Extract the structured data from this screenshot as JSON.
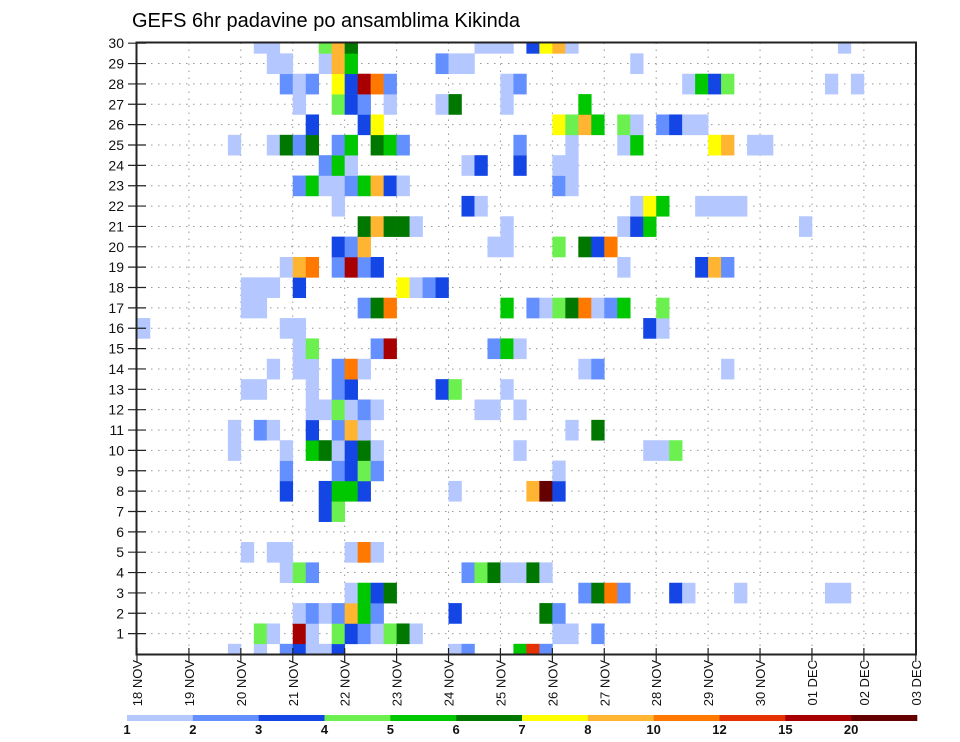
{
  "chart_data": {
    "type": "heatmap",
    "title": "GEFS 6hr padavine po ansamblima Kikinda",
    "xlabel": "",
    "ylabel": "",
    "x_unit": "6-hour step index from 18 NOV 00 UTC",
    "x_steps": 60,
    "x_tick_labels": [
      "18 NOV",
      "19 NOV",
      "20 NOV",
      "21 NOV",
      "22 NOV",
      "23 NOV",
      "24 NOV",
      "25 NOV",
      "26 NOV",
      "27 NOV",
      "28 NOV",
      "29 NOV",
      "30 NOV",
      "01 DEC",
      "02 DEC",
      "03 DEC"
    ],
    "y_ticks": [
      1,
      2,
      3,
      4,
      5,
      6,
      7,
      8,
      9,
      10,
      11,
      12,
      13,
      14,
      15,
      16,
      17,
      18,
      19,
      20,
      21,
      22,
      23,
      24,
      25,
      26,
      27,
      28,
      29,
      30
    ],
    "ylim": [
      0,
      30
    ],
    "grid": true,
    "legend_placement": "bottom",
    "levels": [
      "1",
      "2",
      "3",
      "4",
      "5",
      "6",
      "7",
      "8",
      "10",
      "12",
      "15",
      "20"
    ],
    "colors": [
      "#b4c8ff",
      "#6490ff",
      "#1446e6",
      "#6cf050",
      "#00c800",
      "#007800",
      "#ffff00",
      "#ffb432",
      "#ff7800",
      "#e63200",
      "#a80000",
      "#640000"
    ],
    "bin_codes": "abcdefghijkl",
    "cells_by_member": {
      "30": "9a 10a 14d 15h 16f 26a 27a 28a 30c 31g 32h 33a 54a",
      "29": "10a 11a 14a 15h 16e 23b 24a 25a 38a",
      "28": "11b 12a 13b 15g 16c 17k 18i 19b 28a 29b 42a 43e 44c 45d 53a 55a",
      "27": "12a 15d 16c 17b 19a 23a 24f 28a 34e",
      "26": "13c 17c 18g 32g 33d 34h 35e 37d 38a 40b 41c 42a 43a",
      "25": "7a 10a 11f 12b 13f 15b 16e 18f 19e 20b 29b 33a 37a 38e 44g 45h 47a 48a",
      "24": "14b 15e 16a 25a 26c 29c 32a 33a",
      "23": "12b 13e 14a 15a 16b 17e 18h 19c 20a 32b 33a",
      "22": "15a 25c 26a 38a 39g 40e 43a 44a 45a 46a",
      "21": "17f 18h 19f 20f 21a 28a 37a 38c 39e 51a",
      "20": "15c 16b 17h 27a 28a 32d 34f 35c 36i",
      "19": "11a 12h 13i 15b 16k 17b 18c 37a 43c 44h 45b",
      "18": "8a 9a 10a 12c 20g 21a 22b 23c",
      "17": "8a 9a 17b 18f 19i 28e 30b 31a 32d 33f 34i 35a 36b 37e 40d",
      "16": "0a 11a 12a 39c 40a",
      "15": "12a 13d 18b 19k 27b 28e 29a",
      "14": "10a 12a 13a 15b 16i 17a 34a 35b 45a",
      "13": "8a 9a 13a 15b 16c 23c 24d 28a",
      "12": "13a 14a 15d 16a 17b 18a 26a 27a 29a",
      "11": "7a 9b 10a 13c 15b 16h 17a 33a 35f",
      "10": "7a 11a 13e 14f 15a 16c 17f 18a 29a 39a 40a 41d",
      "9": "11b 15b 16c 17d 18b 32a",
      "8": "11c 14c 15e 16e 17c 24a 30h 31l 32c",
      "7": "14c 15d",
      "5": "8a 10a 11a 16a 17i 18a",
      "4": "11a 12d 13b 25b 26d 27f 28a 29a 30f 31a",
      "3": "16a 17e 18c 19f 34b 35f 36i 37b 41c 42a 46a 53a 54a",
      "2": "12a 13b 14a 15b 16h 17e 18b 24c 31f 32b",
      "1": "9d 10a 12k 13a 15d 16c 17b 18a 19d 20f 21a 32a 33a 35b",
      "0": "7a 9a 11b 12c 13a 14a 15c 24a 25b 29e 30j 31b"
    }
  }
}
